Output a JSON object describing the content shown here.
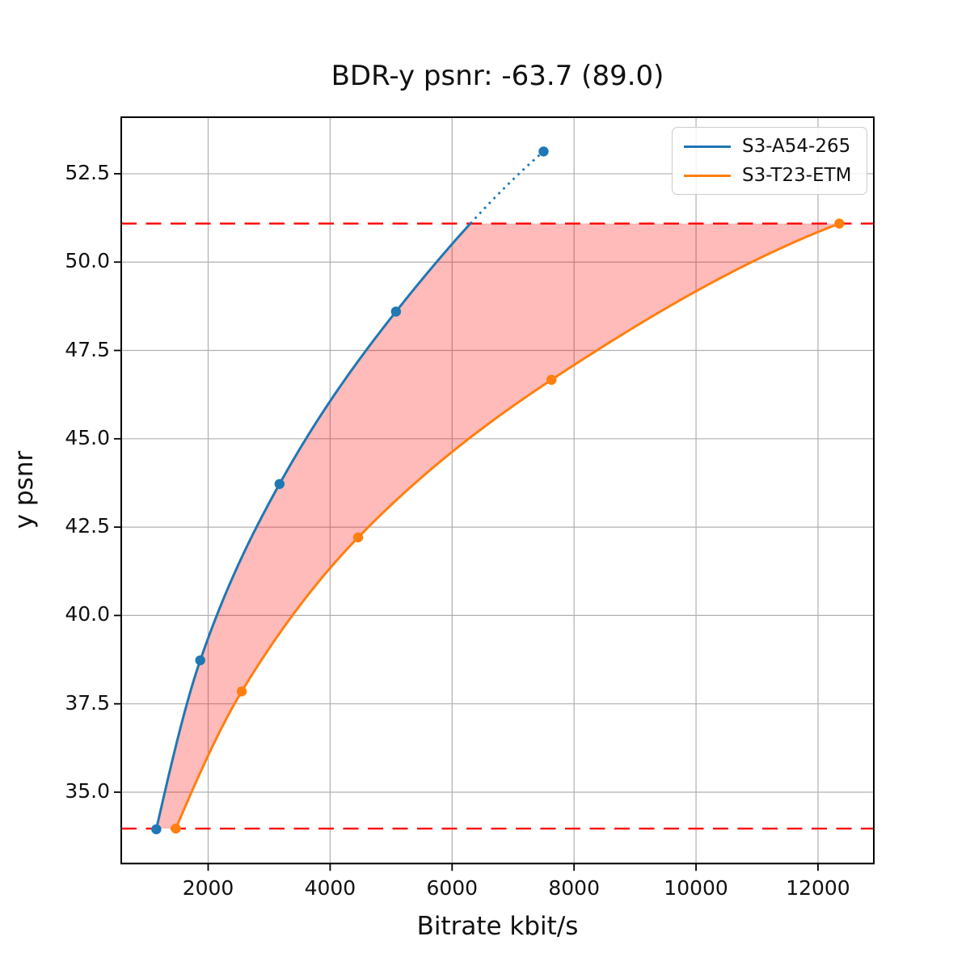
{
  "figure": {
    "title": "BDR-y psnr: -63.7 (89.0)"
  },
  "chart_data": {
    "type": "line",
    "title": "BDR-y psnr: -63.7 (89.0)",
    "xlabel": "Bitrate kbit/s",
    "ylabel": "y psnr",
    "xlim": [
      575,
      12915
    ],
    "ylim": [
      32.98,
      54.1
    ],
    "x_ticks": [
      2000,
      4000,
      6000,
      8000,
      10000,
      12000
    ],
    "y_ticks": [
      35.0,
      37.5,
      40.0,
      42.5,
      45.0,
      47.5,
      50.0,
      52.5
    ],
    "grid": true,
    "grid_color": "#b0b0b0",
    "legend_position": "upper right",
    "series": [
      {
        "name": "S3-A54-265",
        "color": "#1f77b4",
        "marker": "circle",
        "x": [
          1150,
          1870,
          3170,
          5080,
          7500
        ],
        "y": [
          33.95,
          38.73,
          43.72,
          48.6,
          53.13
        ]
      },
      {
        "name": "S3-T23-ETM",
        "color": "#ff7f0e",
        "marker": "circle",
        "x": [
          1470,
          2550,
          4460,
          7630,
          12350
        ],
        "y": [
          33.97,
          37.85,
          42.21,
          46.67,
          51.09
        ]
      }
    ],
    "overlap_lines": {
      "style": "dashed",
      "color": "#ff0000",
      "y_low": 33.97,
      "y_high": 51.09
    },
    "shaded_region": {
      "between": [
        "S3-A54-265",
        "S3-T23-ETM"
      ],
      "color": "#ff0000",
      "opacity": 0.27
    },
    "extrapolated_segment": {
      "series": "S3-A54-265",
      "style": "dotted",
      "from_y": 51.09,
      "to_point": [
        7500,
        53.13
      ]
    }
  }
}
